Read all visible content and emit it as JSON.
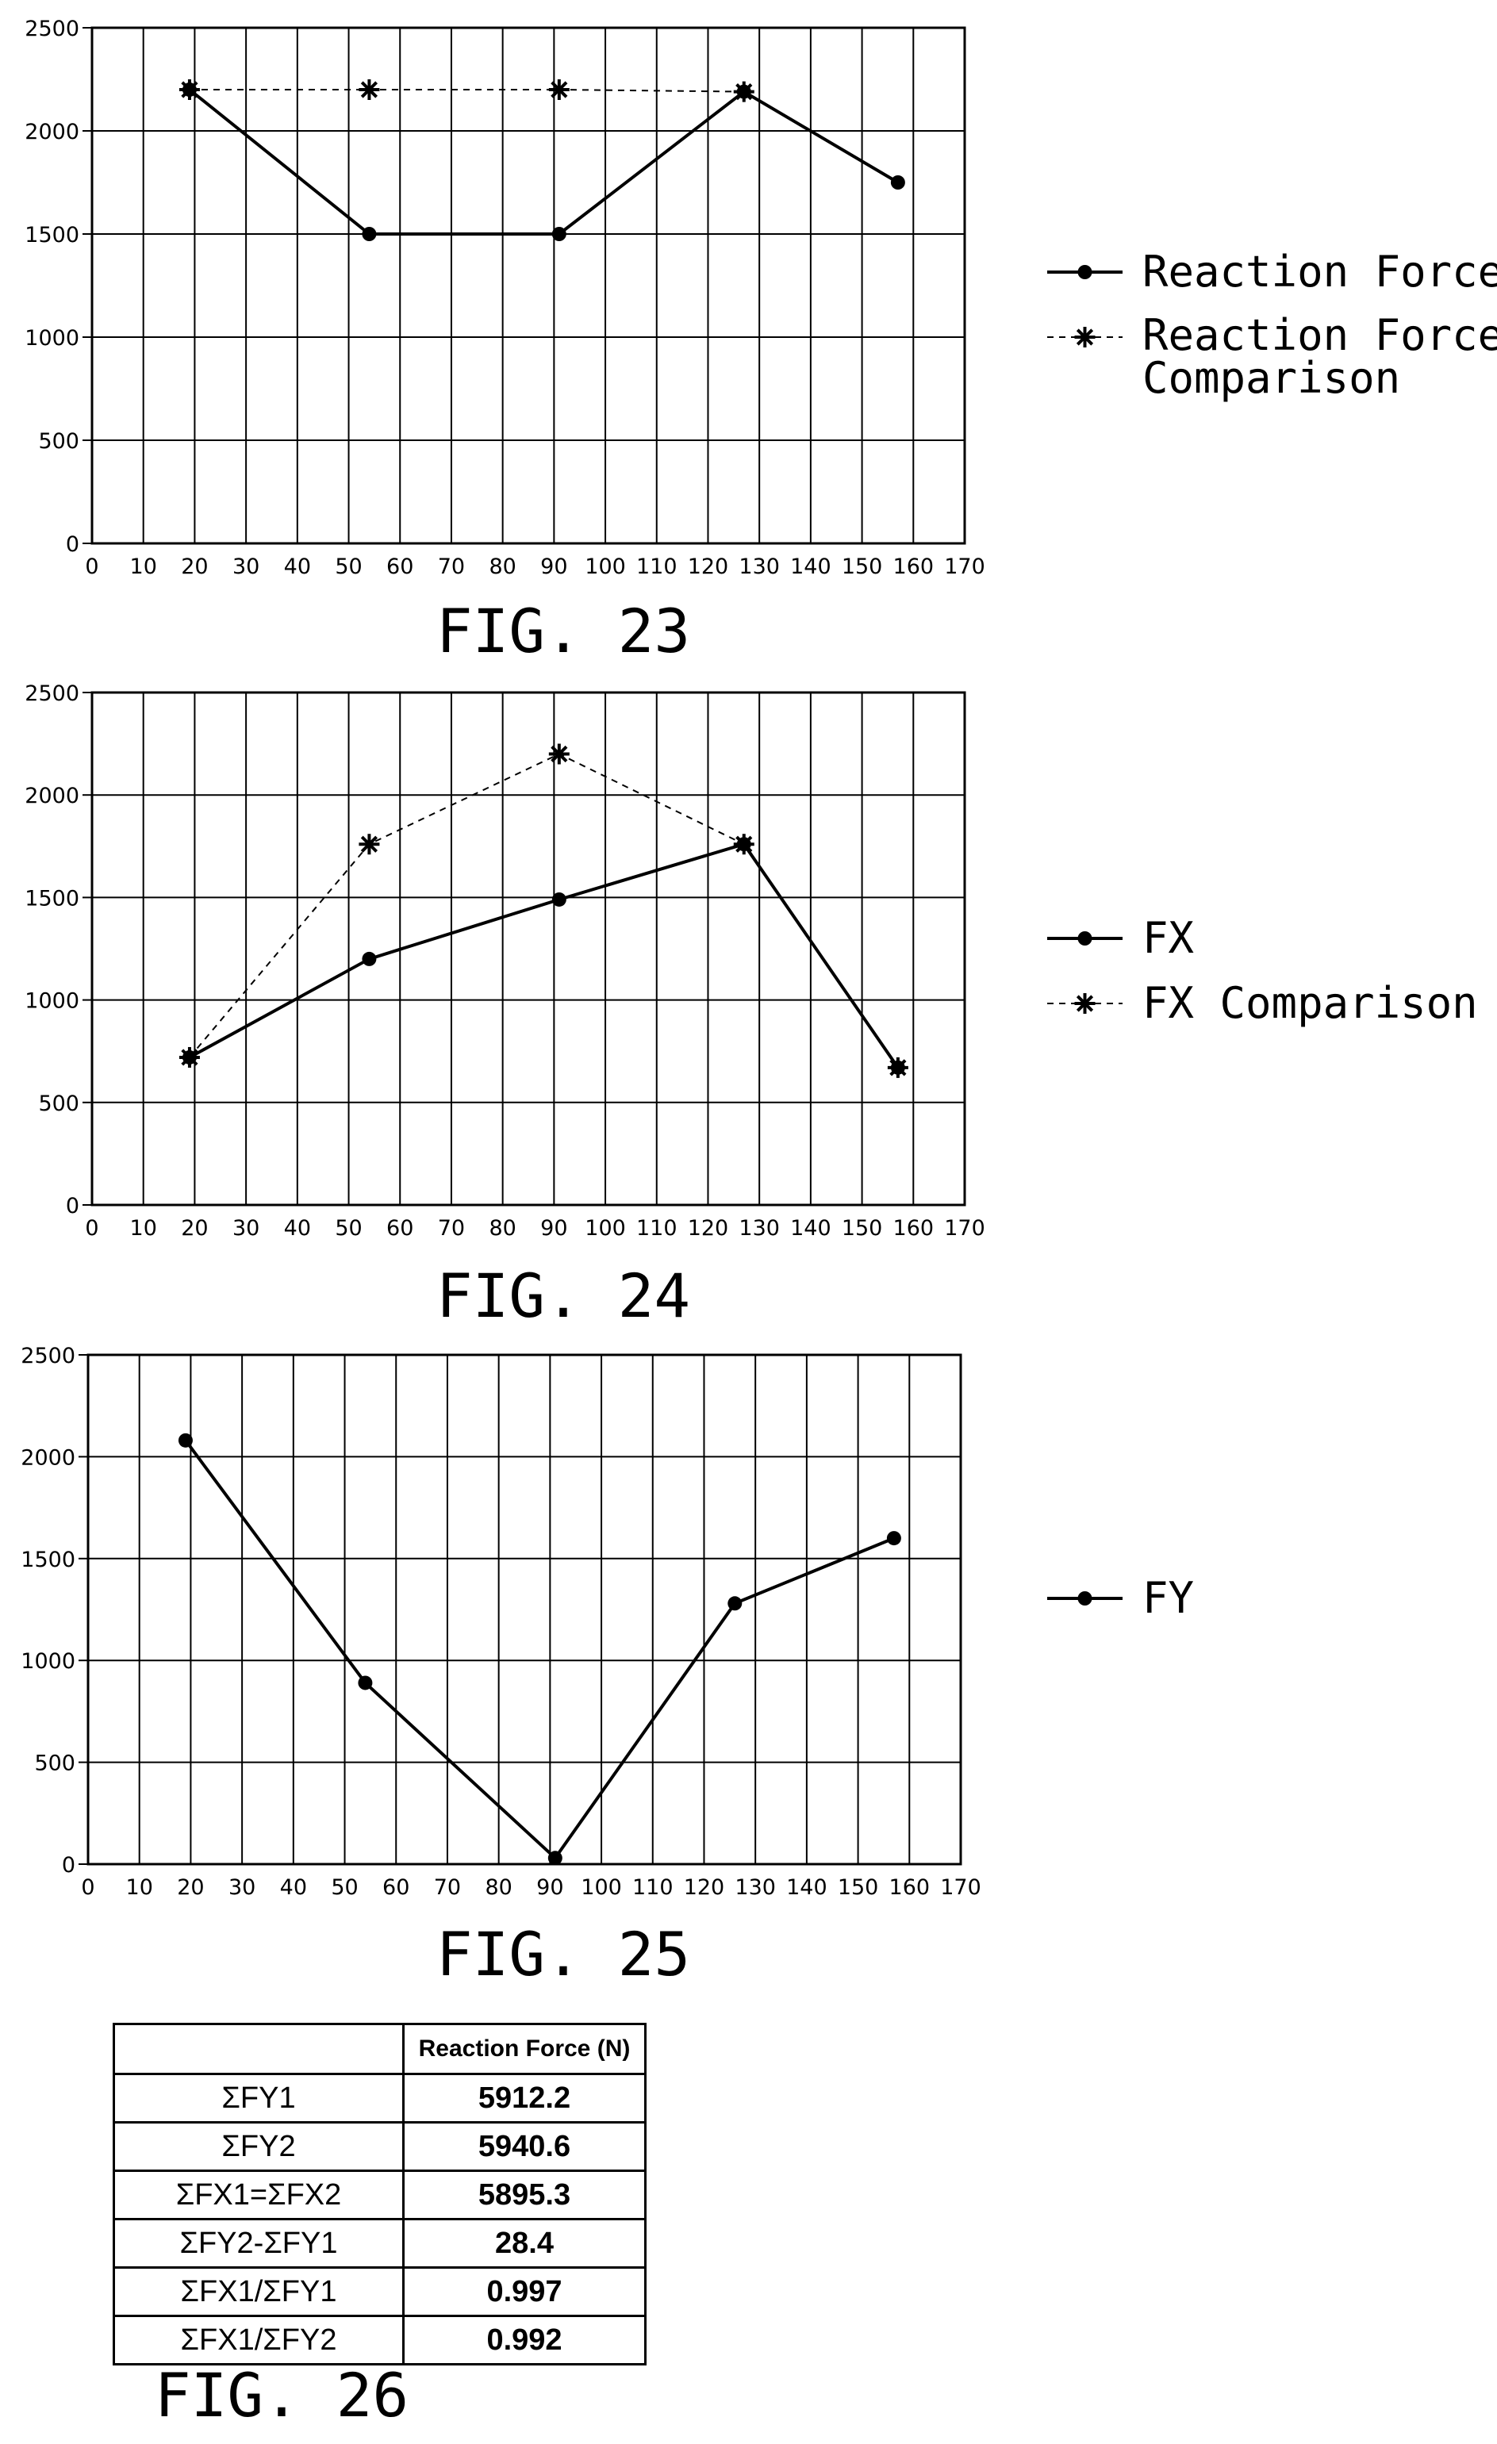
{
  "chart_data": [
    {
      "type": "line",
      "caption": "FIG. 23",
      "x_ticks": [
        "0",
        "10",
        "20",
        "30",
        "40",
        "50",
        "60",
        "70",
        "80",
        "90",
        "100",
        "110",
        "120",
        "130",
        "140",
        "150",
        "160",
        "170"
      ],
      "y_ticks": [
        "0",
        "500",
        "1000",
        "1500",
        "2000",
        "2500"
      ],
      "xlim": [
        0,
        170
      ],
      "ylim": [
        0,
        2500
      ],
      "grid": true,
      "legend_position": "right",
      "series": [
        {
          "name": "Reaction Force",
          "style": "solid-dot",
          "x": [
            19,
            54,
            91,
            127,
            157
          ],
          "y": [
            2200,
            1500,
            1500,
            2190,
            1750
          ]
        },
        {
          "name": "Reaction Force Comparison",
          "style": "dashed-star",
          "x": [
            19,
            54,
            91,
            127
          ],
          "y": [
            2200,
            2200,
            2200,
            2190
          ]
        }
      ]
    },
    {
      "type": "line",
      "caption": "FIG. 24",
      "x_ticks": [
        "0",
        "10",
        "20",
        "30",
        "40",
        "50",
        "60",
        "70",
        "80",
        "90",
        "100",
        "110",
        "120",
        "130",
        "140",
        "150",
        "160",
        "170"
      ],
      "y_ticks": [
        "0",
        "500",
        "1000",
        "1500",
        "2000",
        "2500"
      ],
      "xlim": [
        0,
        170
      ],
      "ylim": [
        0,
        2500
      ],
      "grid": true,
      "legend_position": "right",
      "series": [
        {
          "name": "FX",
          "style": "solid-dot",
          "x": [
            19,
            54,
            91,
            127,
            157
          ],
          "y": [
            720,
            1200,
            1490,
            1760,
            670
          ]
        },
        {
          "name": "FX Comparison",
          "style": "dashed-star",
          "x": [
            19,
            54,
            91,
            127,
            157
          ],
          "y": [
            720,
            1760,
            2200,
            1760,
            670
          ]
        }
      ]
    },
    {
      "type": "line",
      "caption": "FIG. 25",
      "x_ticks": [
        "0",
        "10",
        "20",
        "30",
        "40",
        "50",
        "60",
        "70",
        "80",
        "90",
        "100",
        "110",
        "120",
        "130",
        "140",
        "150",
        "160",
        "170"
      ],
      "y_ticks": [
        "0",
        "500",
        "1000",
        "1500",
        "2000",
        "2500"
      ],
      "xlim": [
        0,
        170
      ],
      "ylim": [
        0,
        2500
      ],
      "grid": true,
      "legend_position": "right",
      "series": [
        {
          "name": "FY",
          "style": "solid-dot",
          "x": [
            19,
            54,
            91,
            126,
            157
          ],
          "y": [
            2080,
            890,
            30,
            1280,
            1600
          ]
        }
      ]
    },
    {
      "type": "table",
      "caption": "FIG. 26",
      "columns": [
        "",
        "Reaction Force (N)"
      ],
      "rows": [
        [
          "ΣFY1",
          "5912.2"
        ],
        [
          "ΣFY2",
          "5940.6"
        ],
        [
          "ΣFX1=ΣFX2",
          "5895.3"
        ],
        [
          "ΣFY2-ΣFY1",
          "28.4"
        ],
        [
          "ΣFX1/ΣFY1",
          "0.997"
        ],
        [
          "ΣFX1/ΣFY2",
          "0.992"
        ]
      ]
    }
  ]
}
